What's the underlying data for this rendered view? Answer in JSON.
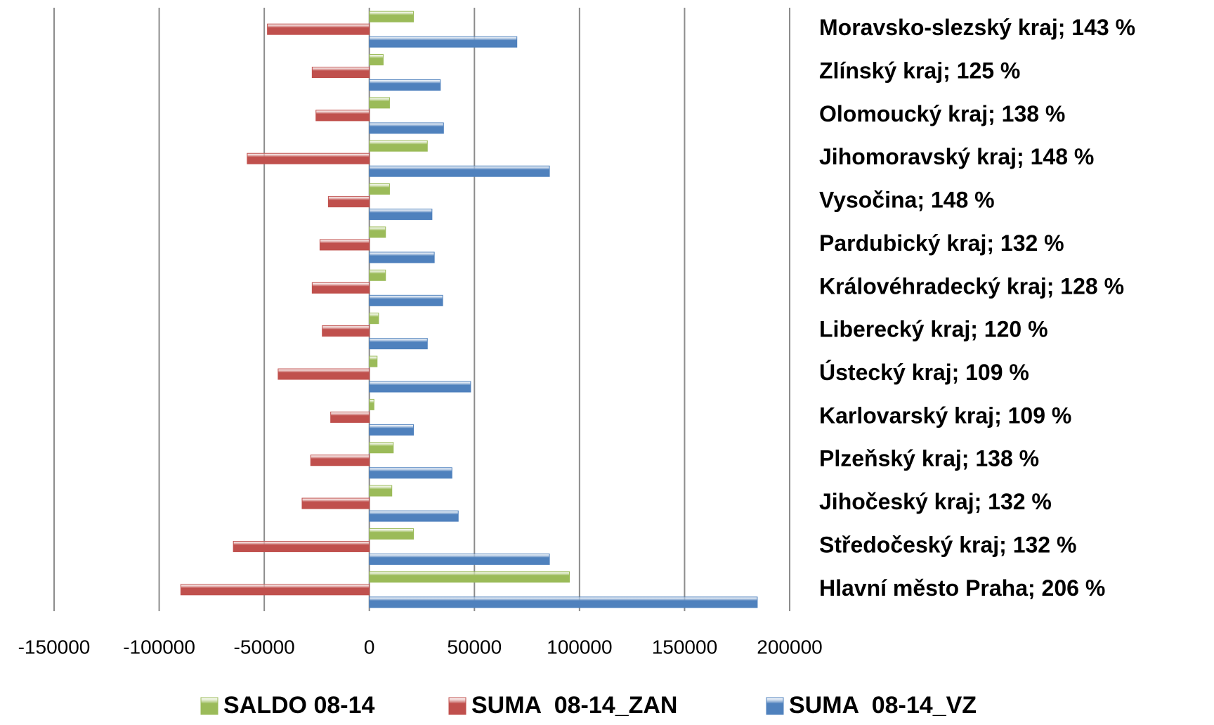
{
  "chart_data": {
    "type": "hbar",
    "categories": [
      "Moravsko-slezský kraj; 143 %",
      "Zlínský kraj; 125 %",
      "Olomoucký kraj; 138 %",
      "Jihomoravský kraj; 148 %",
      "Vysočina; 148 %",
      "Pardubický kraj; 132 %",
      "Královéhradecký kraj; 128 %",
      "Liberecký kraj; 120 %",
      "Ústecký kraj; 109 %",
      "Karlovarský kraj; 109 %",
      "Plzeňský kraj; 138 %",
      "Jihočeský kraj; 132 %",
      "Středočeský kraj; 132 %",
      "Hlavní město Praha; 206 %"
    ],
    "series": [
      {
        "name": "SALDO 08-14",
        "color": "#9bbb59",
        "values": [
          21000,
          6600,
          9600,
          27600,
          9600,
          7700,
          7700,
          4400,
          3700,
          2200,
          11400,
          10700,
          21000,
          95200
        ]
      },
      {
        "name": "SUMA  08-14_ZAN",
        "color": "#c0504d",
        "values": [
          -48500,
          -27200,
          -25400,
          -58100,
          -19500,
          -23500,
          -27200,
          -22400,
          -43400,
          -18400,
          -27900,
          -32000,
          -64700,
          -89700
        ]
      },
      {
        "name": "SUMA  08-14_VZ",
        "color": "#4f81bd",
        "values": [
          70200,
          33800,
          35300,
          85700,
          29800,
          30900,
          34900,
          27600,
          48200,
          21000,
          39300,
          42300,
          85700,
          184600
        ]
      }
    ],
    "xlim": [
      -150000,
      200000
    ],
    "xticks": [
      -150000,
      -100000,
      -50000,
      0,
      50000,
      100000,
      150000,
      200000
    ],
    "grid": true,
    "legend": "bottom"
  }
}
